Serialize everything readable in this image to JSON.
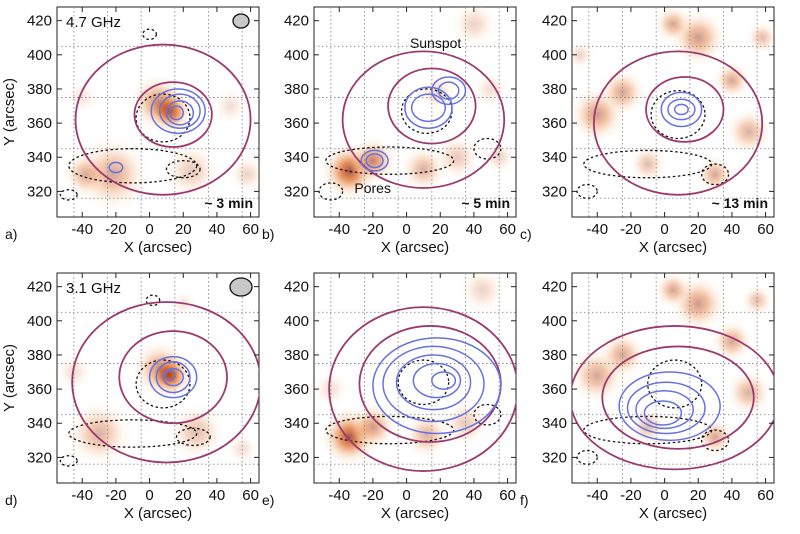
{
  "chart_data": [
    {
      "type": "heatmap",
      "panel_label": "a)",
      "row": 0,
      "col": 0,
      "freq_label": "4.7 GHz",
      "time_label": "~ 3 min",
      "annotations": [],
      "beam": true,
      "sources": [
        {
          "x": 12,
          "y": 367,
          "r": 9,
          "i": 1.0
        },
        {
          "x": 5,
          "y": 372,
          "r": 12,
          "i": 0.5
        },
        {
          "x": -22,
          "y": 330,
          "r": 16,
          "i": 0.4
        },
        {
          "x": -38,
          "y": 330,
          "r": 10,
          "i": 0.35
        },
        {
          "x": 25,
          "y": 332,
          "r": 12,
          "i": 0.25
        },
        {
          "x": 48,
          "y": 370,
          "r": 8,
          "i": 0.15
        },
        {
          "x": -40,
          "y": 375,
          "r": 7,
          "i": 0.12
        },
        {
          "x": 58,
          "y": 330,
          "r": 8,
          "i": 0.2
        }
      ],
      "blue_contours": [
        {
          "cx": 17,
          "cy": 367,
          "rx": 16,
          "ry": 13
        },
        {
          "cx": 18,
          "cy": 367,
          "rx": 12,
          "ry": 10
        },
        {
          "cx": 18,
          "cy": 366,
          "rx": 8,
          "ry": 7
        },
        {
          "cx": 16,
          "cy": 366,
          "rx": 4,
          "ry": 4
        },
        {
          "cx": -20,
          "cy": 334,
          "rx": 4,
          "ry": 3
        }
      ],
      "black_contours": [
        {
          "cx": 8,
          "cy": 363,
          "rx": 16,
          "ry": 14
        },
        {
          "cx": -10,
          "cy": 335,
          "rx": 38,
          "ry": 10
        },
        {
          "cx": 20,
          "cy": 333,
          "rx": 10,
          "ry": 5
        },
        {
          "cx": -48,
          "cy": 318,
          "rx": 5,
          "ry": 3
        },
        {
          "cx": 0,
          "cy": 412,
          "rx": 4,
          "ry": 3
        }
      ],
      "main_contours": [
        {
          "cx": 14,
          "cy": 365,
          "rx": 23,
          "ry": 19
        },
        {
          "cx": 8,
          "cy": 362,
          "rx": 52,
          "ry": 44
        }
      ]
    },
    {
      "type": "heatmap",
      "panel_label": "b)",
      "row": 0,
      "col": 1,
      "freq_label": "",
      "time_label": "~ 5 min",
      "annotations": [
        {
          "text": "Sunspot",
          "x": 2,
          "y": 404
        },
        {
          "text": "Pores",
          "x": -31,
          "y": 319
        }
      ],
      "beam": false,
      "sources": [
        {
          "x": -34,
          "y": 332,
          "r": 12,
          "i": 0.75
        },
        {
          "x": -20,
          "y": 338,
          "r": 10,
          "i": 0.55
        },
        {
          "x": 10,
          "y": 333,
          "r": 10,
          "i": 0.35
        },
        {
          "x": 30,
          "y": 340,
          "r": 10,
          "i": 0.25
        },
        {
          "x": 18,
          "y": 378,
          "r": 8,
          "i": 0.2
        },
        {
          "x": 40,
          "y": 418,
          "r": 10,
          "i": 0.2
        },
        {
          "x": 50,
          "y": 380,
          "r": 8,
          "i": 0.15
        },
        {
          "x": 55,
          "y": 340,
          "r": 7,
          "i": 0.2
        }
      ],
      "blue_contours": [
        {
          "cx": 13,
          "cy": 369,
          "rx": 14,
          "ry": 12
        },
        {
          "cx": 13,
          "cy": 369,
          "rx": 10,
          "ry": 8
        },
        {
          "cx": 25,
          "cy": 379,
          "rx": 10,
          "ry": 8
        },
        {
          "cx": 25,
          "cy": 379,
          "rx": 6,
          "ry": 5
        },
        {
          "cx": -19,
          "cy": 338,
          "rx": 8,
          "ry": 6
        },
        {
          "cx": -19,
          "cy": 338,
          "rx": 5,
          "ry": 4
        }
      ],
      "black_contours": [
        {
          "cx": 12,
          "cy": 367,
          "rx": 15,
          "ry": 13
        },
        {
          "cx": -10,
          "cy": 338,
          "rx": 38,
          "ry": 8
        },
        {
          "cx": -45,
          "cy": 320,
          "rx": 7,
          "ry": 5
        },
        {
          "cx": 48,
          "cy": 345,
          "rx": 8,
          "ry": 6
        }
      ],
      "main_contours": [
        {
          "cx": 15,
          "cy": 370,
          "rx": 26,
          "ry": 22
        },
        {
          "cx": 10,
          "cy": 362,
          "rx": 48,
          "ry": 40
        }
      ]
    },
    {
      "type": "heatmap",
      "panel_label": "c)",
      "row": 0,
      "col": 2,
      "freq_label": "",
      "time_label": "~ 13 min",
      "annotations": [],
      "beam": false,
      "sources": [
        {
          "x": -40,
          "y": 365,
          "r": 12,
          "i": 0.45
        },
        {
          "x": -25,
          "y": 378,
          "r": 10,
          "i": 0.4
        },
        {
          "x": 20,
          "y": 410,
          "r": 12,
          "i": 0.45
        },
        {
          "x": 5,
          "y": 418,
          "r": 8,
          "i": 0.4
        },
        {
          "x": 40,
          "y": 385,
          "r": 8,
          "i": 0.4
        },
        {
          "x": 50,
          "y": 355,
          "r": 10,
          "i": 0.35
        },
        {
          "x": 30,
          "y": 330,
          "r": 8,
          "i": 0.4
        },
        {
          "x": -10,
          "y": 336,
          "r": 8,
          "i": 0.3
        },
        {
          "x": 58,
          "y": 410,
          "r": 7,
          "i": 0.3
        },
        {
          "x": -50,
          "y": 400,
          "r": 6,
          "i": 0.2
        }
      ],
      "blue_contours": [
        {
          "cx": 10,
          "cy": 368,
          "rx": 12,
          "ry": 10
        },
        {
          "cx": 10,
          "cy": 368,
          "rx": 8,
          "ry": 6
        },
        {
          "cx": 10,
          "cy": 368,
          "rx": 4,
          "ry": 3
        }
      ],
      "black_contours": [
        {
          "cx": 8,
          "cy": 365,
          "rx": 16,
          "ry": 14
        },
        {
          "cx": -10,
          "cy": 336,
          "rx": 38,
          "ry": 8
        },
        {
          "cx": 30,
          "cy": 330,
          "rx": 8,
          "ry": 6
        },
        {
          "cx": -46,
          "cy": 320,
          "rx": 6,
          "ry": 4
        }
      ],
      "main_contours": [
        {
          "cx": 12,
          "cy": 368,
          "rx": 23,
          "ry": 19
        },
        {
          "cx": 8,
          "cy": 360,
          "rx": 50,
          "ry": 42
        }
      ]
    },
    {
      "type": "heatmap",
      "panel_label": "d)",
      "row": 1,
      "col": 0,
      "freq_label": "3.1 GHz",
      "time_label": "",
      "annotations": [],
      "beam": true,
      "sources": [
        {
          "x": 12,
          "y": 368,
          "r": 9,
          "i": 1.0
        },
        {
          "x": 6,
          "y": 372,
          "r": 12,
          "i": 0.45
        },
        {
          "x": -30,
          "y": 334,
          "r": 14,
          "i": 0.35
        },
        {
          "x": 28,
          "y": 335,
          "r": 12,
          "i": 0.3
        },
        {
          "x": -45,
          "y": 370,
          "r": 8,
          "i": 0.15
        },
        {
          "x": 20,
          "y": 410,
          "r": 6,
          "i": 0.12
        },
        {
          "x": 55,
          "y": 325,
          "r": 7,
          "i": 0.15
        }
      ],
      "blue_contours": [
        {
          "cx": 14,
          "cy": 367,
          "rx": 14,
          "ry": 12
        },
        {
          "cx": 14,
          "cy": 367,
          "rx": 10,
          "ry": 9
        },
        {
          "cx": 14,
          "cy": 367,
          "rx": 6,
          "ry": 5
        },
        {
          "cx": 12,
          "cy": 368,
          "rx": 3,
          "ry": 3
        }
      ],
      "black_contours": [
        {
          "cx": 8,
          "cy": 363,
          "rx": 16,
          "ry": 14
        },
        {
          "cx": -10,
          "cy": 334,
          "rx": 38,
          "ry": 8
        },
        {
          "cx": 26,
          "cy": 332,
          "rx": 10,
          "ry": 5
        },
        {
          "cx": -48,
          "cy": 318,
          "rx": 5,
          "ry": 3
        },
        {
          "cx": 2,
          "cy": 412,
          "rx": 4,
          "ry": 3
        }
      ],
      "main_contours": [
        {
          "cx": 14,
          "cy": 367,
          "rx": 32,
          "ry": 27
        },
        {
          "cx": 10,
          "cy": 364,
          "rx": 56,
          "ry": 47
        }
      ]
    },
    {
      "type": "heatmap",
      "panel_label": "e)",
      "row": 1,
      "col": 1,
      "freq_label": "",
      "time_label": "",
      "annotations": [],
      "beam": false,
      "sources": [
        {
          "x": -34,
          "y": 332,
          "r": 12,
          "i": 0.75
        },
        {
          "x": -20,
          "y": 338,
          "r": 10,
          "i": 0.45
        },
        {
          "x": 12,
          "y": 333,
          "r": 10,
          "i": 0.35
        },
        {
          "x": 35,
          "y": 340,
          "r": 10,
          "i": 0.25
        },
        {
          "x": 45,
          "y": 418,
          "r": 10,
          "i": 0.2
        },
        {
          "x": -45,
          "y": 360,
          "r": 8,
          "i": 0.15
        }
      ],
      "blue_contours": [
        {
          "cx": 18,
          "cy": 362,
          "rx": 38,
          "ry": 28
        },
        {
          "cx": 16,
          "cy": 363,
          "rx": 30,
          "ry": 22
        },
        {
          "cx": 16,
          "cy": 364,
          "rx": 22,
          "ry": 16
        },
        {
          "cx": 18,
          "cy": 365,
          "rx": 14,
          "ry": 10
        },
        {
          "cx": 22,
          "cy": 365,
          "rx": 7,
          "ry": 5
        }
      ],
      "black_contours": [
        {
          "cx": 10,
          "cy": 364,
          "rx": 15,
          "ry": 13
        },
        {
          "cx": -10,
          "cy": 336,
          "rx": 38,
          "ry": 8
        },
        {
          "cx": 48,
          "cy": 345,
          "rx": 8,
          "ry": 6
        }
      ],
      "main_contours": [
        {
          "cx": 14,
          "cy": 363,
          "rx": 42,
          "ry": 34
        },
        {
          "cx": 10,
          "cy": 360,
          "rx": 56,
          "ry": 48
        }
      ]
    },
    {
      "type": "heatmap",
      "panel_label": "f)",
      "row": 1,
      "col": 2,
      "freq_label": "",
      "time_label": "",
      "annotations": [],
      "beam": false,
      "sources": [
        {
          "x": -40,
          "y": 368,
          "r": 12,
          "i": 0.4
        },
        {
          "x": -25,
          "y": 380,
          "r": 10,
          "i": 0.4
        },
        {
          "x": 20,
          "y": 410,
          "r": 12,
          "i": 0.45
        },
        {
          "x": 5,
          "y": 418,
          "r": 8,
          "i": 0.4
        },
        {
          "x": 40,
          "y": 388,
          "r": 9,
          "i": 0.4
        },
        {
          "x": 50,
          "y": 358,
          "r": 10,
          "i": 0.35
        },
        {
          "x": 30,
          "y": 332,
          "r": 8,
          "i": 0.4
        },
        {
          "x": -10,
          "y": 338,
          "r": 8,
          "i": 0.3
        },
        {
          "x": 55,
          "y": 412,
          "r": 7,
          "i": 0.3
        }
      ],
      "blue_contours": [
        {
          "cx": 3,
          "cy": 350,
          "rx": 30,
          "ry": 20
        },
        {
          "cx": 1,
          "cy": 349,
          "rx": 23,
          "ry": 15
        },
        {
          "cx": 0,
          "cy": 348,
          "rx": 17,
          "ry": 11
        },
        {
          "cx": -1,
          "cy": 346,
          "rx": 11,
          "ry": 7
        }
      ],
      "black_contours": [
        {
          "cx": 6,
          "cy": 363,
          "rx": 16,
          "ry": 14
        },
        {
          "cx": -10,
          "cy": 336,
          "rx": 38,
          "ry": 8
        },
        {
          "cx": 30,
          "cy": 330,
          "rx": 8,
          "ry": 6
        },
        {
          "cx": -46,
          "cy": 320,
          "rx": 6,
          "ry": 4
        }
      ],
      "main_contours": [
        {
          "cx": 8,
          "cy": 355,
          "rx": 45,
          "ry": 30
        },
        {
          "cx": 6,
          "cy": 355,
          "rx": 62,
          "ry": 42
        }
      ]
    }
  ],
  "axes": {
    "x_label": "X (arcsec)",
    "y_label": "Y (arcsec)",
    "x_range": [
      -55,
      65
    ],
    "y_range": [
      305,
      428
    ],
    "x_ticks": [
      -40,
      -20,
      0,
      20,
      40,
      60
    ],
    "y_ticks": [
      320,
      340,
      360,
      380,
      400,
      420
    ]
  },
  "colors": {
    "map_peak": "#8a1e00",
    "map_mid": "#e0631a",
    "map_low": "#fbd9b8",
    "main_contour": "#9b3a6e",
    "blue_contour": "#6672e0",
    "magnetogram_contour": "#111111",
    "beam_fill": "#c8c8c8"
  }
}
